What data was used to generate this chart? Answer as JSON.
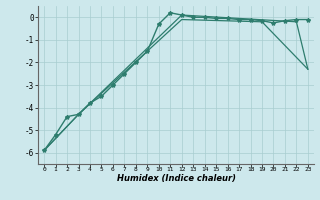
{
  "xlabel": "Humidex (Indice chaleur)",
  "ylabel": "",
  "background_color": "#cde8ec",
  "line_color": "#2e7d6e",
  "xlim": [
    -0.5,
    23.5
  ],
  "ylim": [
    -6.5,
    0.5
  ],
  "yticks": [
    0,
    -1,
    -2,
    -3,
    -4,
    -5,
    -6
  ],
  "xticks": [
    0,
    1,
    2,
    3,
    4,
    5,
    6,
    7,
    8,
    9,
    10,
    11,
    12,
    13,
    14,
    15,
    16,
    17,
    18,
    19,
    20,
    21,
    22,
    23
  ],
  "series": [
    {
      "x": [
        0,
        1,
        2,
        3,
        4,
        5,
        6,
        7,
        8,
        9,
        10,
        11,
        12,
        13,
        14,
        15,
        16,
        17,
        18,
        19,
        20,
        21,
        22,
        23
      ],
      "y": [
        -5.9,
        -5.2,
        -4.4,
        -4.3,
        -3.8,
        -3.5,
        -3.0,
        -2.5,
        -2.0,
        -1.5,
        -0.3,
        0.2,
        0.1,
        0.0,
        0.0,
        -0.05,
        -0.05,
        -0.1,
        -0.1,
        -0.15,
        -0.25,
        -0.15,
        -0.1,
        -0.1
      ],
      "marker": "*",
      "markersize": 3.0,
      "linewidth": 1.0
    },
    {
      "x": [
        0,
        3,
        12,
        22,
        23
      ],
      "y": [
        -5.9,
        -4.3,
        0.1,
        -0.2,
        -2.3
      ],
      "marker": null,
      "linewidth": 0.9
    },
    {
      "x": [
        0,
        3,
        12,
        19,
        23
      ],
      "y": [
        -5.9,
        -4.3,
        -0.1,
        -0.2,
        -2.3
      ],
      "marker": null,
      "linewidth": 0.9
    }
  ]
}
